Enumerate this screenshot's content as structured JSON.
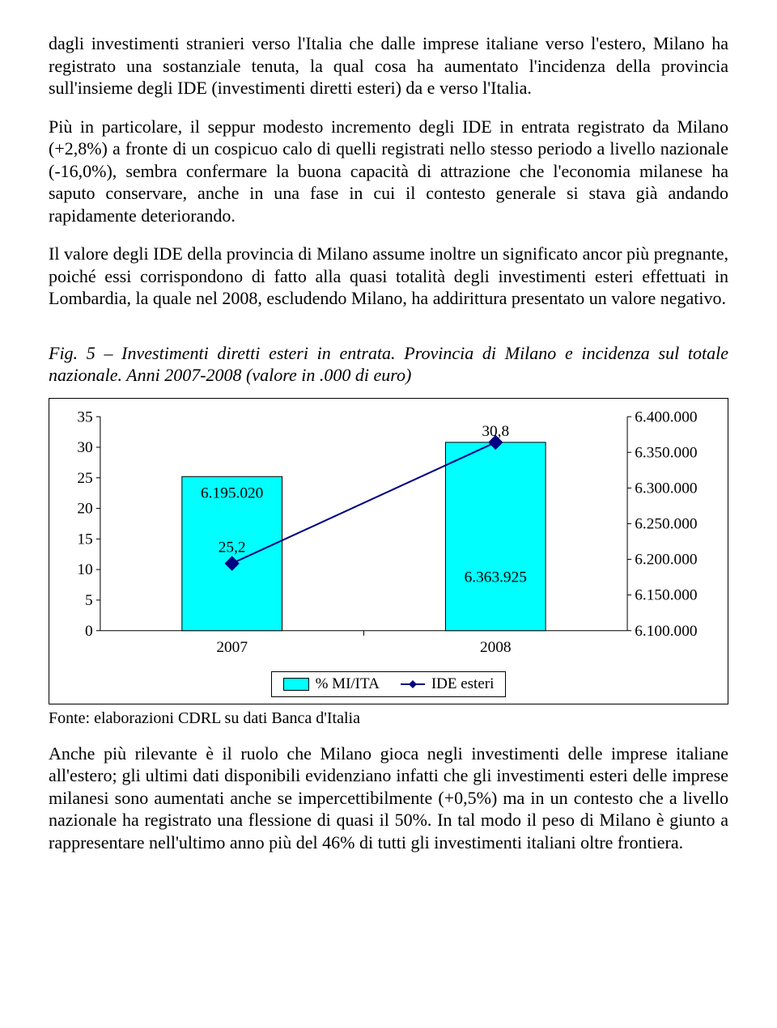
{
  "paragraphs": {
    "p1": "dagli investimenti stranieri verso l'Italia che dalle imprese italiane verso l'estero, Milano ha registrato una sostanziale tenuta, la qual cosa ha aumentato l'incidenza della provincia sull'insieme degli IDE (investimenti diretti esteri) da e verso l'Italia.",
    "p2": "Più in particolare, il seppur modesto incremento degli IDE in entrata registrato da Milano (+2,8%) a fronte di un cospicuo calo di quelli registrati nello stesso periodo a livello nazionale (-16,0%), sembra confermare la buona capacità di attrazione che l'economia milanese ha saputo conservare, anche in una fase in cui il contesto generale si stava già andando rapidamente deteriorando.",
    "p3": "Il valore degli IDE della provincia di Milano assume inoltre un significato ancor più pregnante, poiché essi corrispondono di fatto alla quasi totalità degli investimenti esteri effettuati in Lombardia, la quale nel 2008, escludendo Milano, ha addirittura presentato un valore negativo.",
    "p4": "Anche più rilevante è il ruolo che Milano gioca negli investimenti delle imprese italiane all'estero; gli ultimi dati disponibili evidenziano infatti che gli investimenti esteri delle imprese milanesi sono aumentati anche se impercettibilmente (+0,5%) ma in un contesto che a livello nazionale ha registrato una flessione di quasi il 50%. In tal modo il peso di Milano è giunto a rappresentare nell'ultimo anno più del 46% di tutti gli investimenti italiani oltre frontiera."
  },
  "fig_caption": "Fig. 5 – Investimenti diretti esteri in entrata. Provincia di Milano e incidenza sul totale nazionale. Anni 2007-2008 (valore in .000 di euro)",
  "chart": {
    "type": "bar+line",
    "categories": [
      "2007",
      "2008"
    ],
    "bars": {
      "values_pct": [
        25.2,
        30.8
      ],
      "labels_inside": [
        "6.195.020",
        "6.363.925"
      ],
      "color": "#00ffff",
      "border_color": "#000000",
      "width_rel": 0.38
    },
    "line": {
      "values_pct": [
        25.2,
        30.8
      ],
      "point_labels": [
        "25,2",
        "30,8"
      ],
      "point_label_above": [
        false,
        true
      ],
      "color": "#000080",
      "marker": "diamond",
      "marker_size": 9,
      "line_width": 2
    },
    "left_axis": {
      "min": 0,
      "max": 35,
      "step": 5,
      "ticks": [
        "0",
        "5",
        "10",
        "15",
        "20",
        "25",
        "30",
        "35"
      ]
    },
    "right_axis": {
      "min": 6100000,
      "max": 6400000,
      "step": 50000,
      "ticks": [
        "6.100.000",
        "6.150.000",
        "6.200.000",
        "6.250.000",
        "6.300.000",
        "6.350.000",
        "6.400.000"
      ]
    },
    "legend": {
      "items": [
        {
          "kind": "bar",
          "label": "% MI/ITA"
        },
        {
          "kind": "line",
          "label": "IDE esteri"
        }
      ]
    },
    "tick_fontsize": 19,
    "tick_color": "#000000",
    "axis_line_color": "#000000",
    "plot_bg": "#ffffff"
  },
  "source_line": "Fonte: elaborazioni CDRL su dati Banca d'Italia"
}
